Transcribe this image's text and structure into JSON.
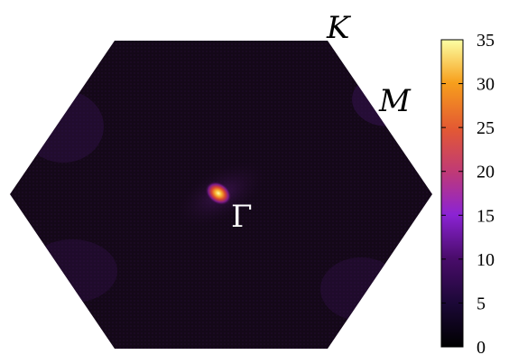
{
  "chart_data": {
    "type": "heatmap",
    "title": "",
    "region": "hexagonal Brillouin zone",
    "point_labels": [
      {
        "text": "K",
        "position": "upper-right corner"
      },
      {
        "text": "M",
        "position": "right edge midpoint"
      },
      {
        "text": "Γ",
        "position": "center"
      }
    ],
    "colorbar": {
      "min": 0,
      "max": 35,
      "ticks": [
        0,
        5,
        10,
        15,
        20,
        25,
        30,
        35
      ],
      "tick_labels": [
        "0",
        "5",
        "10",
        "15",
        "20",
        "25",
        "30",
        "35"
      ],
      "colormap": [
        "#000000",
        "#1b0836",
        "#4a0c6b",
        "#8b23d4",
        "#c03a76",
        "#e35933",
        "#f79f1c",
        "#fcffa4"
      ]
    },
    "peaks": [
      {
        "location": "Γ",
        "value": 35
      }
    ],
    "background_value": 1
  }
}
